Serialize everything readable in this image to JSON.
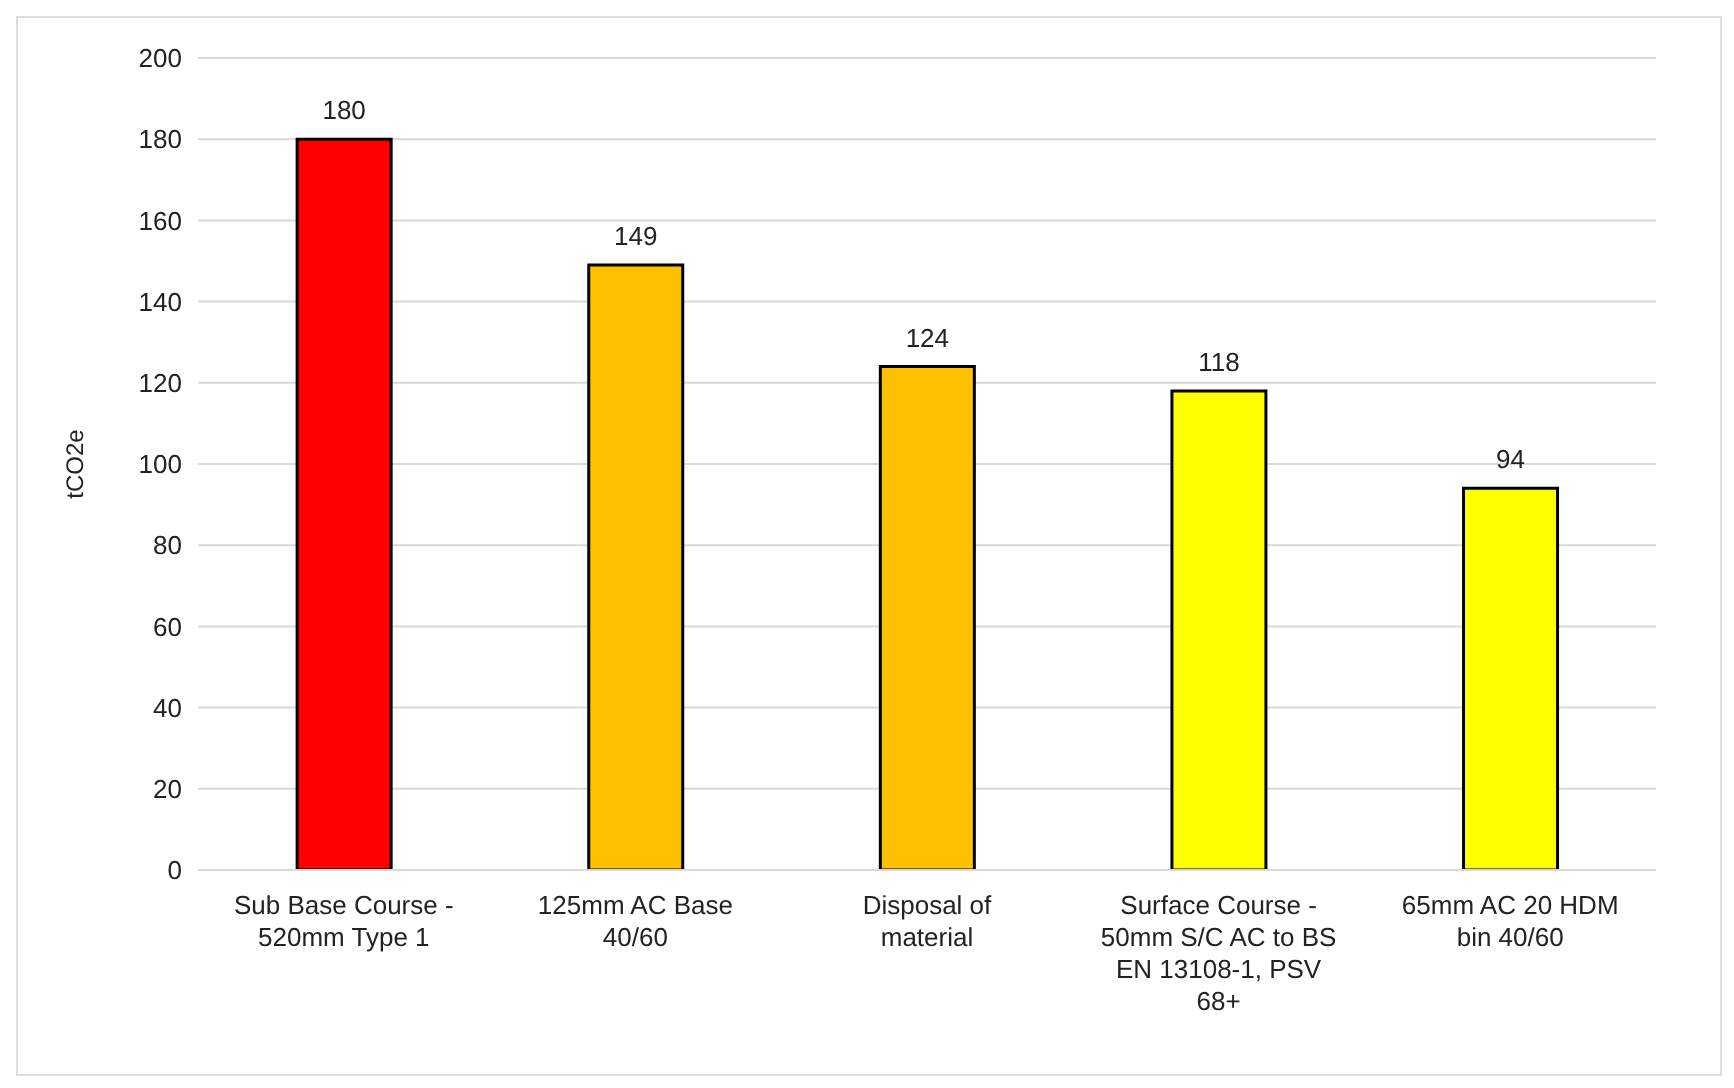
{
  "chart_data": {
    "type": "bar",
    "ylabel": "tCO2e",
    "categories": [
      "Sub Base Course - 520mm Type 1",
      "125mm AC Base 40/60",
      "Disposal of material",
      "Surface Course - 50mm S/C AC to BS EN 13108-1, PSV 68+",
      "65mm AC 20 HDM bin 40/60"
    ],
    "values": [
      180,
      149,
      124,
      118,
      94
    ],
    "colors": [
      "#ff0000",
      "#ffc000",
      "#ffc000",
      "#ffff00",
      "#ffff00"
    ],
    "ylim": [
      0,
      200
    ],
    "yticks": [
      0,
      20,
      40,
      60,
      80,
      100,
      120,
      140,
      160,
      180,
      200
    ],
    "grid": "y",
    "data_labels": true
  }
}
